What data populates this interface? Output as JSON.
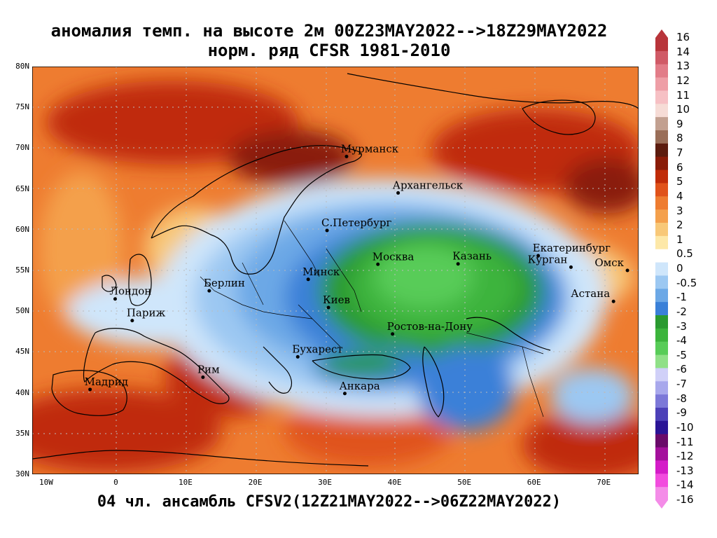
{
  "title_line1": "аномалия темп. на высоте 2м 00Z23MAY2022-->18Z29MAY2022",
  "title_line2": "норм. ряд CFSR 1981-2010",
  "footer": "04 чл. ансамбль CFSV2(12Z21MAY2022-->06Z22MAY2022)",
  "lat_labels": [
    "80N",
    "75N",
    "70N",
    "65N",
    "60N",
    "55N",
    "50N",
    "45N",
    "40N",
    "35N",
    "30N"
  ],
  "lon_labels": [
    "10W",
    "0",
    "10E",
    "20E",
    "30E",
    "40E",
    "50E",
    "60E",
    "70E"
  ],
  "cities": [
    {
      "name": "Мурманск",
      "lon": 33.1,
      "lat": 68.97
    },
    {
      "name": "Архангельск",
      "lon": 40.5,
      "lat": 64.5
    },
    {
      "name": "С.Петербург",
      "lon": 30.3,
      "lat": 59.9
    },
    {
      "name": "Москва",
      "lon": 37.6,
      "lat": 55.75
    },
    {
      "name": "Казань",
      "lon": 49.1,
      "lat": 55.8
    },
    {
      "name": "Екатеринбург",
      "lon": 60.6,
      "lat": 56.8
    },
    {
      "name": "Курган",
      "lon": 65.3,
      "lat": 55.4
    },
    {
      "name": "Омск",
      "lon": 73.4,
      "lat": 55.0
    },
    {
      "name": "Астана",
      "lon": 71.4,
      "lat": 51.2
    },
    {
      "name": "Минск",
      "lon": 27.6,
      "lat": 53.9
    },
    {
      "name": "Берлин",
      "lon": 13.4,
      "lat": 52.5
    },
    {
      "name": "Лондон",
      "lon": -0.1,
      "lat": 51.5
    },
    {
      "name": "Париж",
      "lon": 2.35,
      "lat": 48.85
    },
    {
      "name": "Киев",
      "lon": 30.5,
      "lat": 50.45
    },
    {
      "name": "Ростов-на-Дону",
      "lon": 39.7,
      "lat": 47.2
    },
    {
      "name": "Бухарест",
      "lon": 26.1,
      "lat": 44.4
    },
    {
      "name": "Рим",
      "lon": 12.5,
      "lat": 41.9
    },
    {
      "name": "Мадрид",
      "lon": -3.7,
      "lat": 40.4
    },
    {
      "name": "Анкара",
      "lon": 32.85,
      "lat": 39.9
    }
  ],
  "colorbar": {
    "labels": [
      "16",
      "14",
      "13",
      "12",
      "11",
      "10",
      "9",
      "8",
      "7",
      "6",
      "5",
      "4",
      "3",
      "2",
      "1",
      "0.5",
      "0",
      "-0.5",
      "-1",
      "-2",
      "-3",
      "-4",
      "-5",
      "-6",
      "-7",
      "-8",
      "-9",
      "-10",
      "-11",
      "-12",
      "-13",
      "-14",
      "-16"
    ],
    "colors": [
      "#b8343a",
      "#d05a66",
      "#e27c88",
      "#ee9ea6",
      "#f6c0c4",
      "#f6dcd6",
      "#c2a090",
      "#9a6e58",
      "#5c1c0e",
      "#8a1c08",
      "#c02c08",
      "#e0521a",
      "#ee7c30",
      "#f4a04c",
      "#f8c878",
      "#fde8a8",
      "#ffffff",
      "#cfe6fb",
      "#9cc8f2",
      "#6ca8e6",
      "#3a80d8",
      "#2a9a30",
      "#3cb43c",
      "#58cc58",
      "#90e088",
      "#d0d0f8",
      "#a8a8ec",
      "#7c78d8",
      "#4c40b8",
      "#2a1496",
      "#6a0a6a",
      "#a4109c",
      "#d41cc8",
      "#f24cde",
      "#f48ce8"
    ]
  }
}
